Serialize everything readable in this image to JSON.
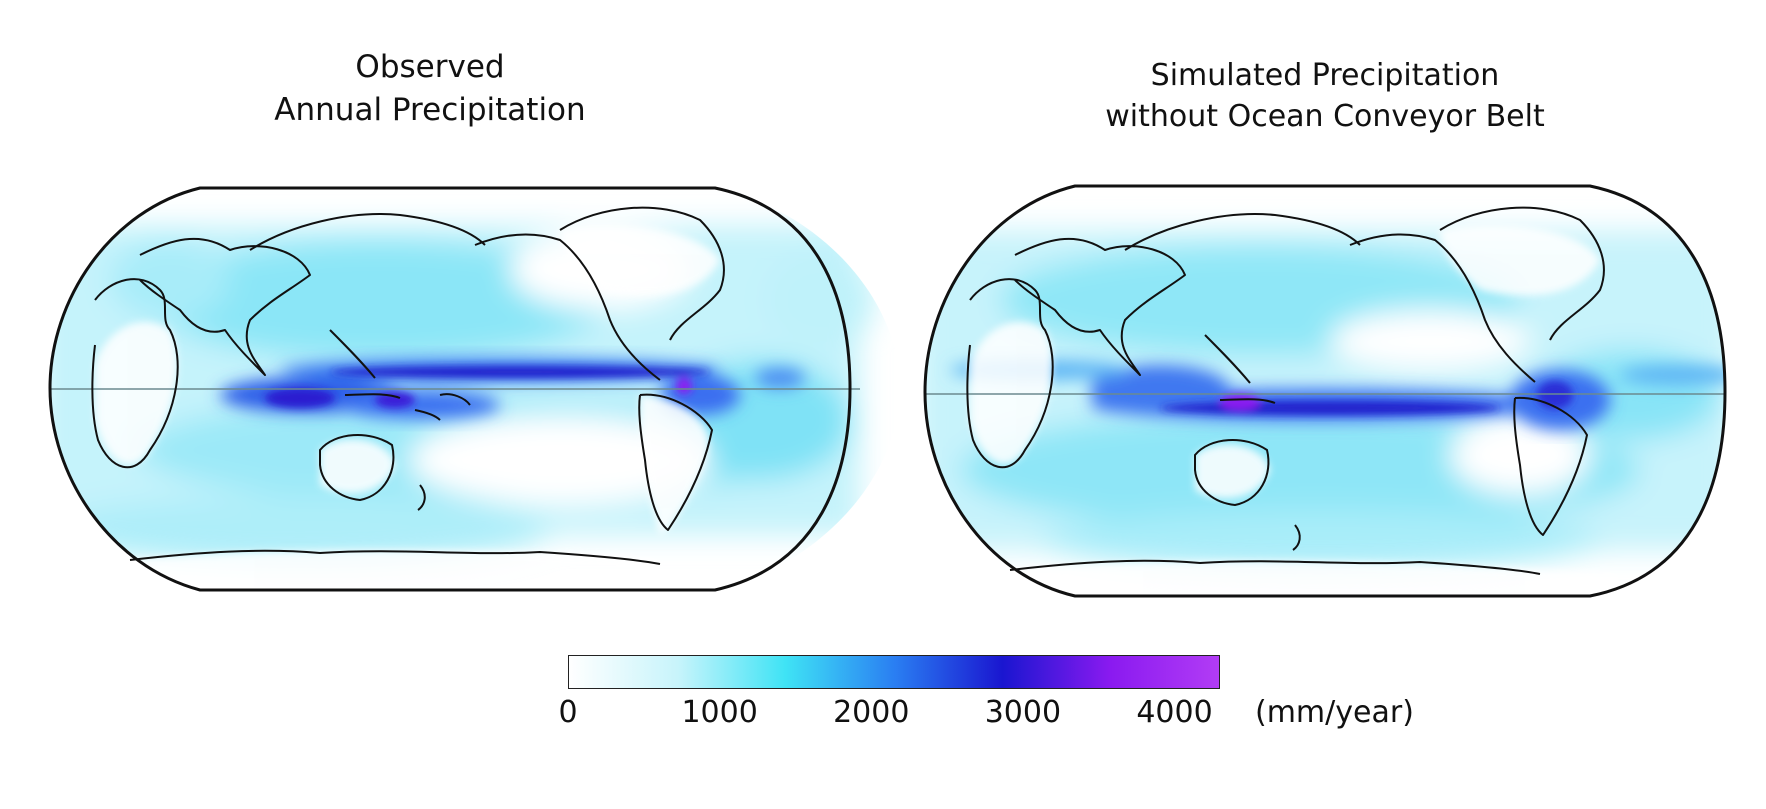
{
  "panels": [
    {
      "title_line1": "Observed",
      "title_line2": "Annual Precipitation"
    },
    {
      "title_line1": "Simulated Precipitation",
      "title_line2": "without Ocean Conveyor Belt"
    }
  ],
  "colorbar": {
    "ticks": [
      "0",
      "1000",
      "2000",
      "3000",
      "4000"
    ],
    "tick_values": [
      0,
      1000,
      2000,
      3000,
      4000
    ],
    "max": 4300,
    "unit": "(mm/year)",
    "colors": [
      "#ffffff",
      "#c8f4fb",
      "#3fe3f5",
      "#2a7ff2",
      "#1a16d0",
      "#8a1af0",
      "#b23cf5"
    ]
  },
  "colors": {
    "ocean_light": "#bff2fa",
    "ocean_mid": "#5fdcf5",
    "itcz": "#2a2fd6",
    "itcz_core": "#8a1af0",
    "coast": "#111111"
  }
}
